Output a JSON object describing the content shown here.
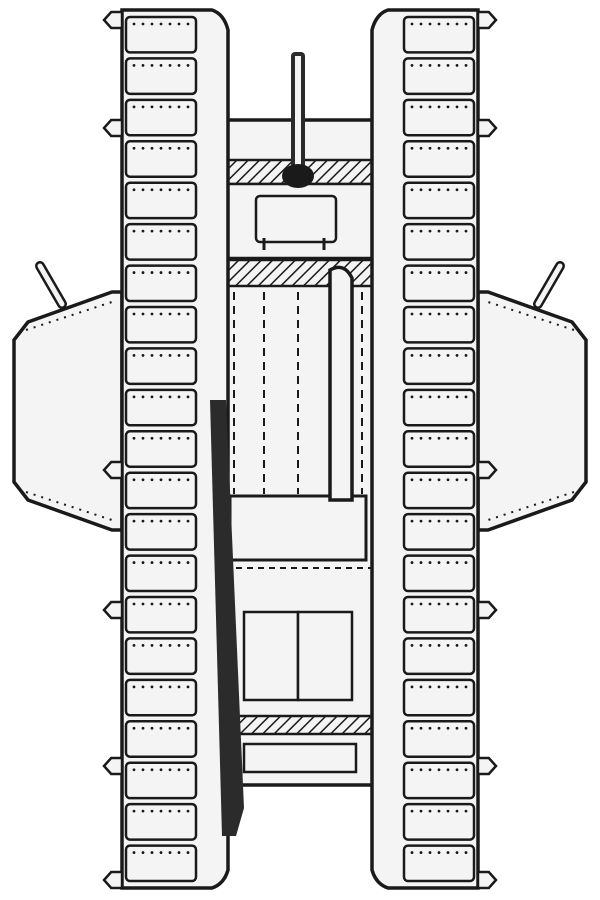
{
  "image": {
    "subject": "tank-top-view-line-drawing",
    "style": "black-ink-sketch",
    "colors": {
      "background": "#ffffff",
      "fill": "#f4f4f4",
      "ink": "#1a1a1a",
      "dark": "#2b2b2b"
    },
    "track_link_count": 21,
    "track_bolt_count": 7
  }
}
